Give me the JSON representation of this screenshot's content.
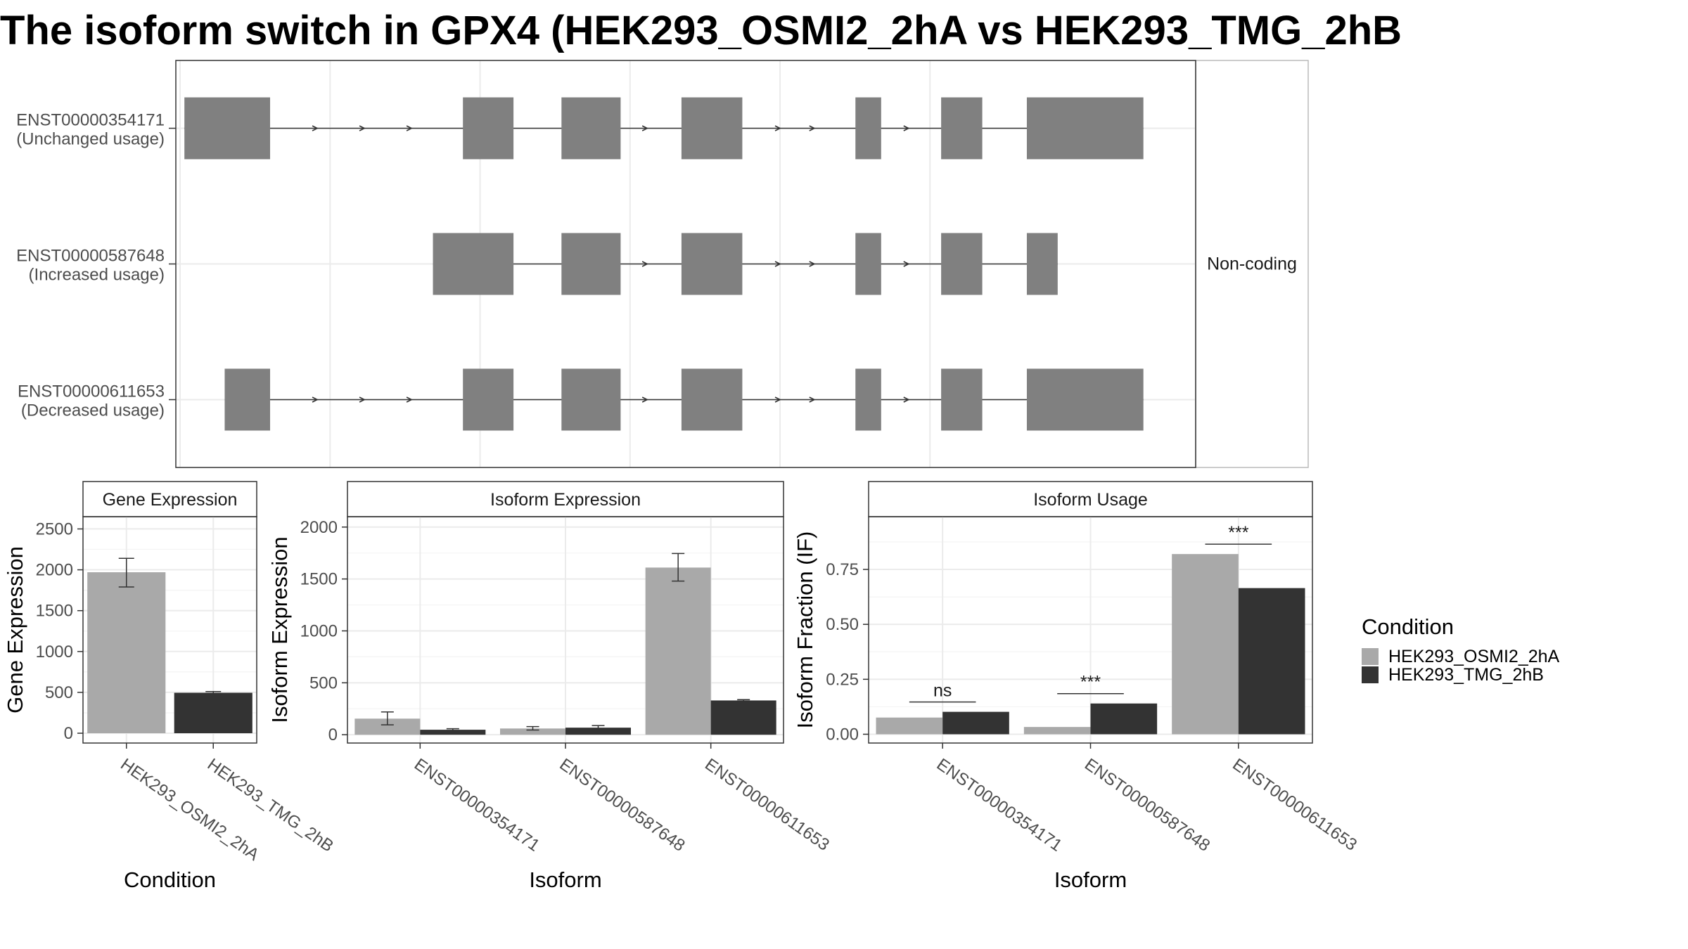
{
  "page": {
    "title": "The isoform switch in GPX4 (HEK293_OSMI2_2hA vs HEK293_TMG_2hB"
  },
  "colors": {
    "exon": "#808080",
    "condition_a": "#a9a9a9",
    "condition_b": "#333333",
    "panel_border": "#333333",
    "grid": "#ebebeb",
    "strip_bg": "#ffffff"
  },
  "chart_data": [
    {
      "type": "gene-structure",
      "transcripts": [
        {
          "id": "ENST00000354171",
          "status": "(Unchanged usage)",
          "exons": [
            [
              0.5,
              10.5
            ],
            [
              33,
              38.9
            ],
            [
              44.5,
              51.4
            ],
            [
              58.5,
              65.6
            ],
            [
              78.8,
              81.8
            ],
            [
              88.8,
              93.6
            ],
            [
              98.8,
              112.4
            ]
          ],
          "arrows": [
            16,
            21.5,
            27,
            54.5,
            70,
            74,
            85
          ]
        },
        {
          "id": "ENST00000587648",
          "status": "(Increased usage)",
          "exons": [
            [
              29.5,
              38.9
            ],
            [
              44.5,
              51.4
            ],
            [
              58.5,
              65.6
            ],
            [
              78.8,
              81.8
            ],
            [
              88.8,
              93.6
            ],
            [
              98.8,
              102.4
            ]
          ],
          "arrows": [
            54.5,
            70,
            74,
            85
          ]
        },
        {
          "id": "ENST00000611653",
          "status": "(Decreased usage)",
          "exons": [
            [
              5.2,
              10.5
            ],
            [
              33,
              38.9
            ],
            [
              44.5,
              51.4
            ],
            [
              58.5,
              65.6
            ],
            [
              78.8,
              81.8
            ],
            [
              88.8,
              93.6
            ],
            [
              98.8,
              112.4
            ]
          ],
          "arrows": [
            16,
            21.5,
            27,
            54.5,
            70,
            74,
            85
          ]
        }
      ],
      "strip_label": "Non-coding",
      "xlim": [
        -0.5,
        118.5
      ]
    },
    {
      "type": "bar",
      "title": "Gene Expression",
      "xlabel": "Condition",
      "ylabel": "Gene Expression",
      "categories": [
        "HEK293_OSMI2_2hA",
        "HEK293_TMG_2hB"
      ],
      "values": [
        1970,
        495
      ],
      "errors": [
        [
          1790,
          2140
        ],
        [
          480,
          510
        ]
      ],
      "ylim": [
        -120,
        2650
      ],
      "yticks": [
        0,
        500,
        1000,
        1500,
        2000,
        2500
      ]
    },
    {
      "type": "bar",
      "title": "Isoform Expression",
      "xlabel": "Isoform",
      "ylabel": "Isoform Expression",
      "categories": [
        "ENST00000354171",
        "ENST00000587648",
        "ENST00000611653"
      ],
      "series": [
        {
          "name": "HEK293_OSMI2_2hA",
          "values": [
            155,
            60,
            1610
          ],
          "errors": [
            [
              95,
              220
            ],
            [
              45,
              78
            ],
            [
              1480,
              1745
            ]
          ]
        },
        {
          "name": "HEK293_TMG_2hB",
          "values": [
            48,
            68,
            330
          ],
          "errors": [
            [
              40,
              58
            ],
            [
              55,
              88
            ],
            [
              325,
              338
            ]
          ]
        }
      ],
      "ylim": [
        -80,
        2100
      ],
      "yticks": [
        0,
        500,
        1000,
        1500,
        2000
      ]
    },
    {
      "type": "bar",
      "title": "Isoform Usage",
      "xlabel": "Isoform",
      "ylabel": "Isoform Fraction (IF)",
      "categories": [
        "ENST00000354171",
        "ENST00000587648",
        "ENST00000611653"
      ],
      "series": [
        {
          "name": "HEK293_OSMI2_2hA",
          "values": [
            0.076,
            0.033,
            0.82
          ]
        },
        {
          "name": "HEK293_TMG_2hB",
          "values": [
            0.102,
            0.14,
            0.665
          ]
        }
      ],
      "significance": [
        "ns",
        "***",
        "***"
      ],
      "ylim": [
        -0.04,
        0.99
      ],
      "yticks": [
        0.0,
        0.25,
        0.5,
        0.75
      ],
      "ytick_labels": [
        "0.00",
        "0.25",
        "0.50",
        "0.75"
      ]
    }
  ],
  "legend": {
    "title": "Condition",
    "items": [
      "HEK293_OSMI2_2hA",
      "HEK293_TMG_2hB"
    ]
  }
}
